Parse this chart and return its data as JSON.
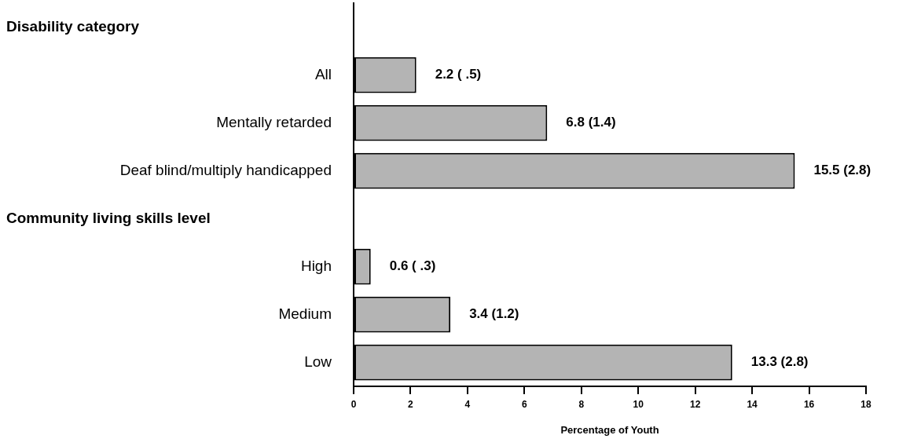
{
  "chart_data": {
    "type": "bar",
    "orientation": "horizontal",
    "categories": [
      null,
      "All",
      "Mentally retarded",
      "Deaf blind/multiply handicapped",
      null,
      "High",
      "Medium",
      "Low"
    ],
    "annotations": [
      "Disability category",
      "Community living skills level"
    ],
    "values": [
      null,
      2.2,
      6.8,
      15.5,
      null,
      0.6,
      3.4,
      13.3
    ],
    "value_labels": [
      null,
      "2.2 ( .5)",
      "6.8 (1.4)",
      "15.5 (2.8)",
      null,
      "0.6 ( .3)",
      "3.4 (1.2)",
      "13.3 (2.8)"
    ],
    "color": "#b4b4b4",
    "xlim": [
      0,
      18
    ],
    "xticks": [
      0,
      2,
      4,
      6,
      8,
      10,
      12,
      14,
      16,
      18
    ],
    "xlabel": "Percentage of Youth",
    "grid": false,
    "legend": false
  }
}
